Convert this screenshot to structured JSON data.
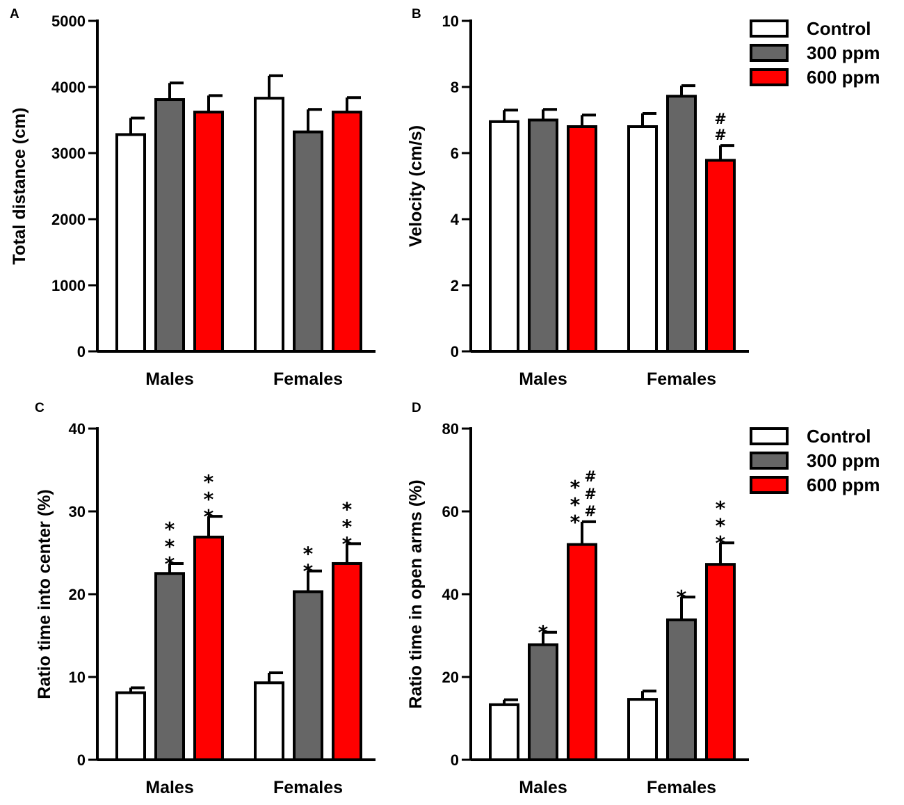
{
  "chart_data": [
    {
      "panel": "A",
      "type": "bar",
      "title": "",
      "xlabel": "",
      "ylabel": "Total distance (cm)",
      "ylim": [
        0,
        5000
      ],
      "yticks": [
        0,
        1000,
        2000,
        3000,
        4000,
        5000
      ],
      "categories": [
        "Males",
        "Females"
      ],
      "series": [
        {
          "name": "Control",
          "color": "#ffffff",
          "values": [
            3280,
            3830
          ],
          "errors": [
            250,
            340
          ],
          "annotations": [
            "",
            ""
          ]
        },
        {
          "name": "300 ppm",
          "color": "#666666",
          "values": [
            3810,
            3320
          ],
          "errors": [
            250,
            340
          ],
          "annotations": [
            "",
            ""
          ]
        },
        {
          "name": "600 ppm",
          "color": "#ff0000",
          "values": [
            3620,
            3620
          ],
          "errors": [
            250,
            220
          ],
          "annotations": [
            "",
            ""
          ]
        }
      ],
      "legend": "none"
    },
    {
      "panel": "B",
      "type": "bar",
      "title": "",
      "xlabel": "",
      "ylabel": "Velocity (cm/s)",
      "ylim": [
        0,
        10
      ],
      "yticks": [
        0,
        2,
        4,
        6,
        8,
        10
      ],
      "categories": [
        "Males",
        "Females"
      ],
      "series": [
        {
          "name": "Control",
          "color": "#ffffff",
          "values": [
            6.95,
            6.8
          ],
          "errors": [
            0.35,
            0.4
          ],
          "annotations": [
            "",
            ""
          ]
        },
        {
          "name": "300 ppm",
          "color": "#666666",
          "values": [
            7.0,
            7.72
          ],
          "errors": [
            0.32,
            0.32
          ],
          "annotations": [
            "",
            ""
          ]
        },
        {
          "name": "600 ppm",
          "color": "#ff0000",
          "values": [
            6.8,
            5.78
          ],
          "errors": [
            0.35,
            0.45
          ],
          "annotations": [
            "",
            "##"
          ]
        }
      ],
      "legend": "top-right"
    },
    {
      "panel": "C",
      "type": "bar",
      "title": "",
      "xlabel": "",
      "ylabel": "Ratio time into center (%)",
      "ylim": [
        0,
        40
      ],
      "yticks": [
        0,
        10,
        20,
        30,
        40
      ],
      "categories": [
        "Males",
        "Females"
      ],
      "series": [
        {
          "name": "Control",
          "color": "#ffffff",
          "values": [
            8.1,
            9.3
          ],
          "errors": [
            0.6,
            1.2
          ],
          "annotations": [
            "",
            ""
          ]
        },
        {
          "name": "300 ppm",
          "color": "#666666",
          "values": [
            22.5,
            20.3
          ],
          "errors": [
            1.2,
            2.5
          ],
          "annotations": [
            "***",
            "**"
          ]
        },
        {
          "name": "600 ppm",
          "color": "#ff0000",
          "values": [
            26.9,
            23.7
          ],
          "errors": [
            2.5,
            2.4
          ],
          "annotations": [
            "***",
            "***"
          ]
        }
      ],
      "legend": "none"
    },
    {
      "panel": "D",
      "type": "bar",
      "title": "",
      "xlabel": "",
      "ylabel": "Ratio time in open arms (%)",
      "ylim": [
        0,
        80
      ],
      "yticks": [
        0,
        20,
        40,
        60,
        80
      ],
      "categories": [
        "Males",
        "Females"
      ],
      "series": [
        {
          "name": "Control",
          "color": "#ffffff",
          "values": [
            13.3,
            14.6
          ],
          "errors": [
            1.2,
            2.0
          ],
          "annotations": [
            "",
            ""
          ]
        },
        {
          "name": "300 ppm",
          "color": "#666666",
          "values": [
            27.8,
            33.8
          ],
          "errors": [
            3.0,
            5.5
          ],
          "annotations": [
            "*",
            "*"
          ]
        },
        {
          "name": "600 ppm",
          "color": "#ff0000",
          "values": [
            52.0,
            47.2
          ],
          "errors": [
            5.5,
            5.2
          ],
          "annotations": [
            "***###",
            "***"
          ]
        }
      ],
      "legend": "top-right"
    }
  ],
  "legend_entries": [
    "Control",
    "300 ppm",
    "600 ppm"
  ],
  "colors": {
    "control": "#ffffff",
    "ppm300": "#666666",
    "ppm600": "#ff0000",
    "stroke": "#000000"
  }
}
